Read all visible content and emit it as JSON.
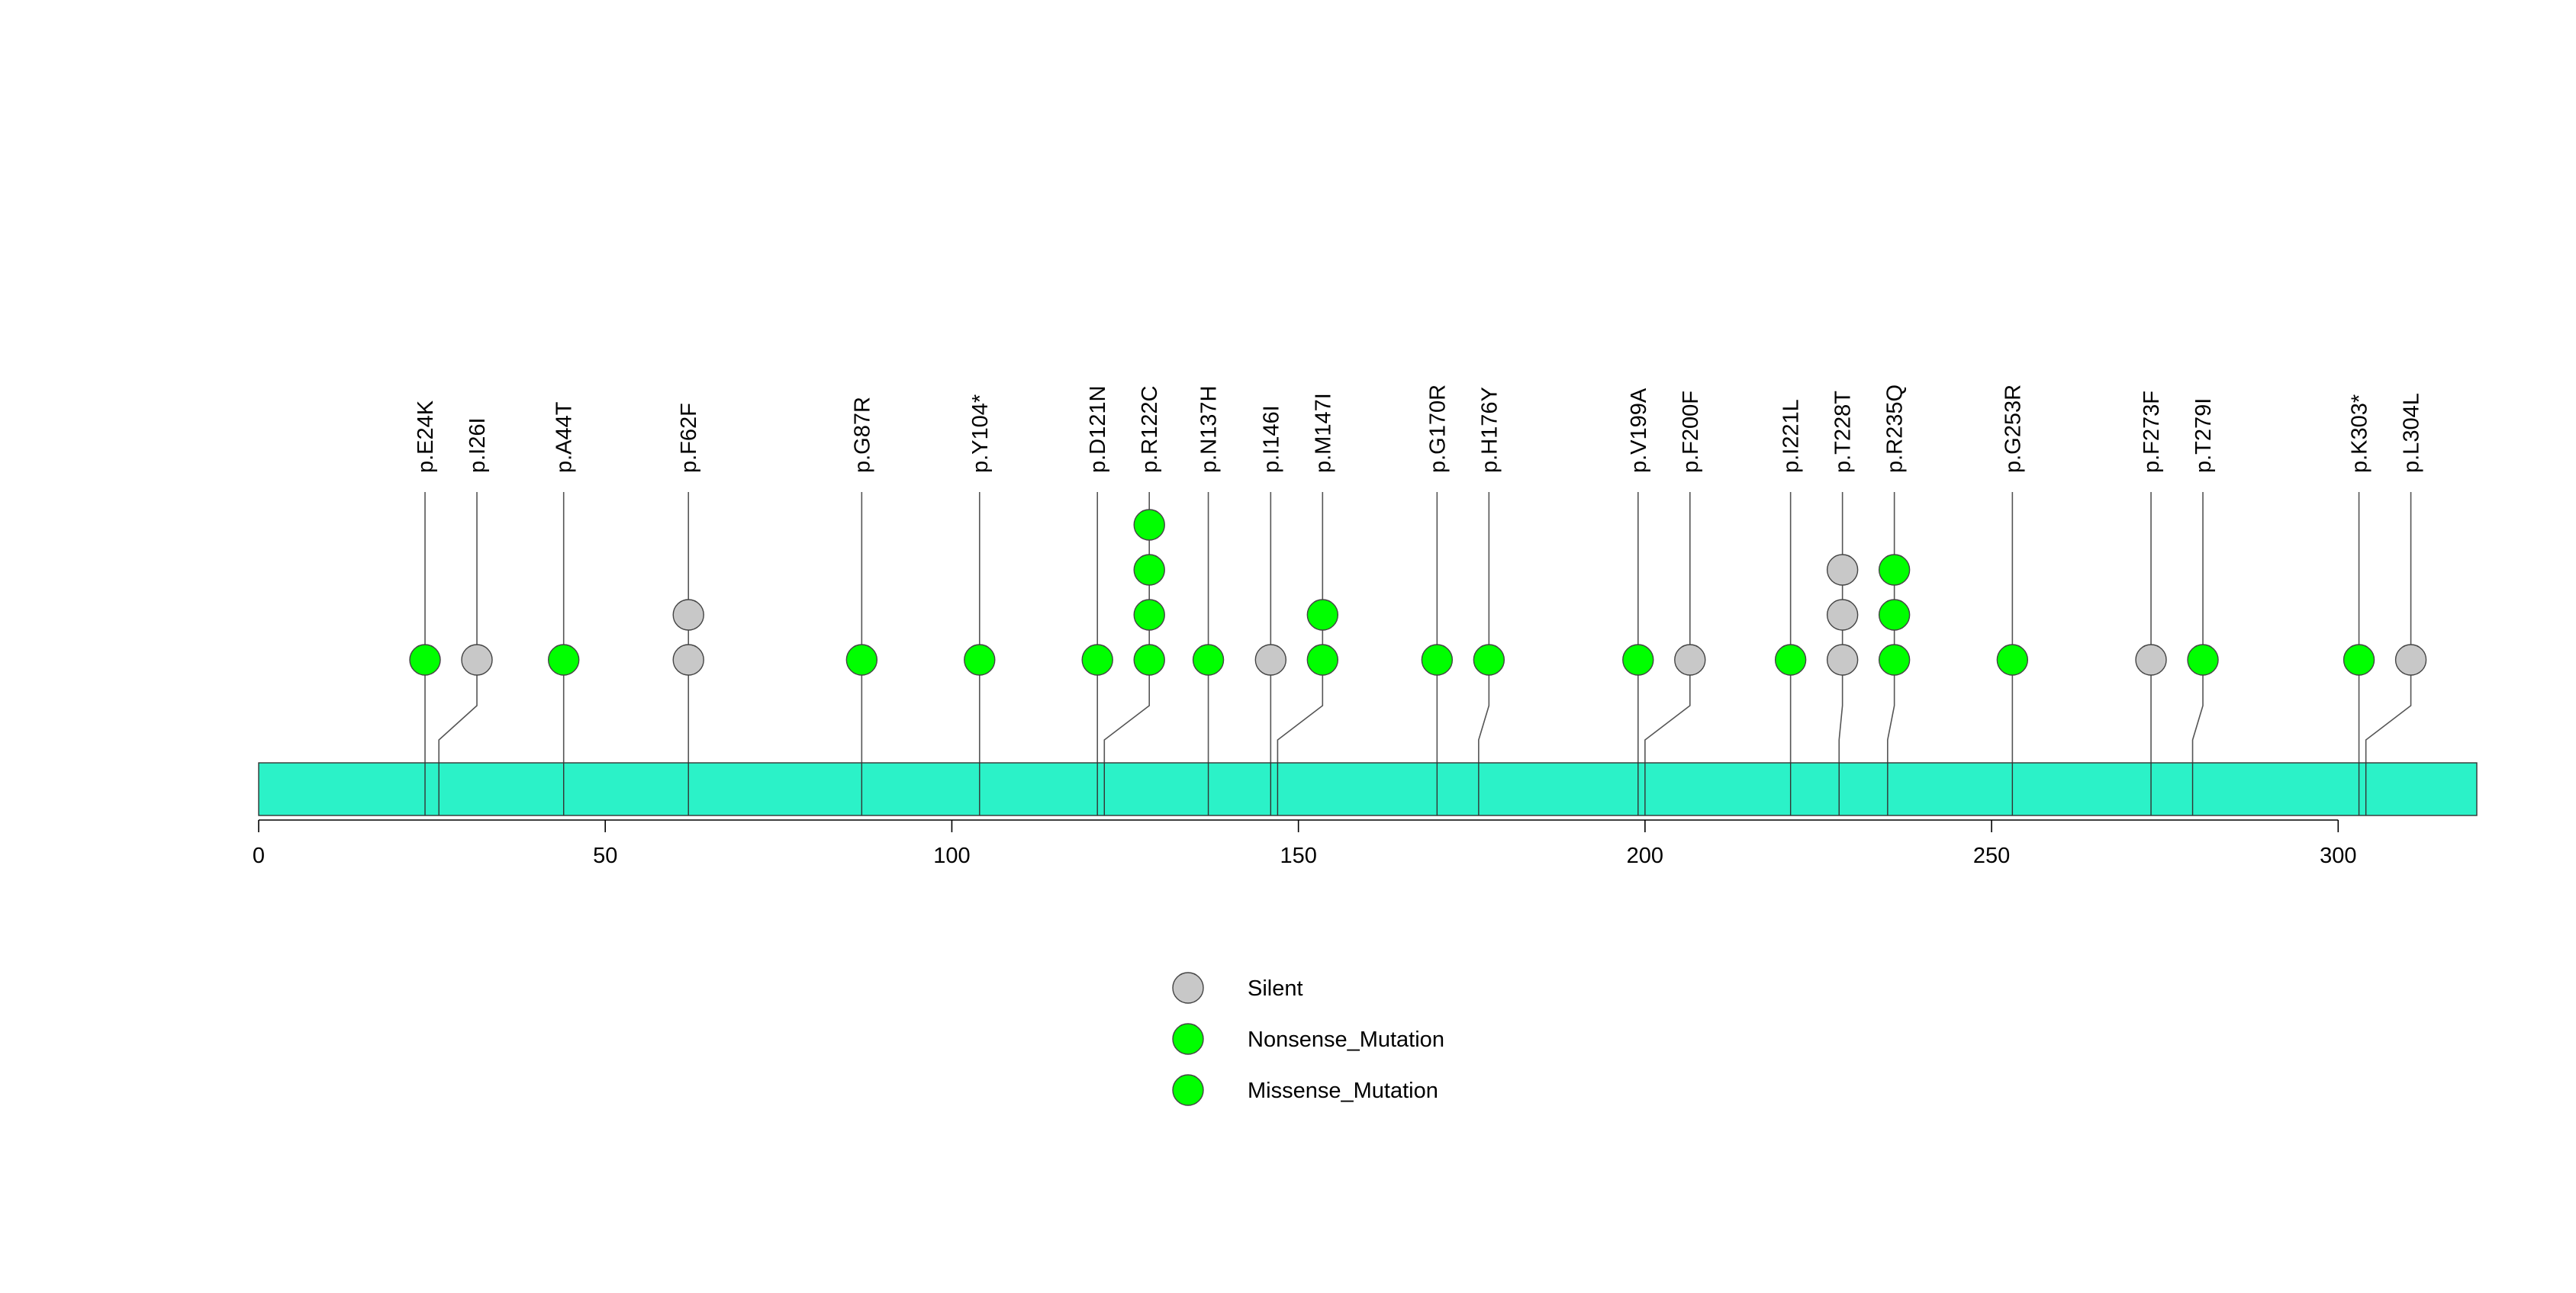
{
  "chart_data": {
    "type": "lollipop",
    "title": "",
    "xlabel": "",
    "ylabel": "",
    "protein_length": 320,
    "x_ticks": [
      0,
      50,
      100,
      150,
      200,
      250,
      300
    ],
    "domain_color": "#2bf2c8",
    "colors": {
      "Silent": "#c8c8c8",
      "Nonsense_Mutation": "#00ff00",
      "Missense_Mutation": "#00ff00"
    },
    "legend": [
      {
        "label": "Silent",
        "color": "#c8c8c8"
      },
      {
        "label": "Nonsense_Mutation",
        "color": "#00ff00"
      },
      {
        "label": "Missense_Mutation",
        "color": "#00ff00"
      }
    ],
    "mutations": [
      {
        "label": "p.E24K",
        "position": 24,
        "type": "Missense_Mutation",
        "count": 1
      },
      {
        "label": "p.I26I",
        "position": 26,
        "type": "Silent",
        "count": 1
      },
      {
        "label": "p.A44T",
        "position": 44,
        "type": "Missense_Mutation",
        "count": 1
      },
      {
        "label": "p.F62F",
        "position": 62,
        "type": "Silent",
        "count": 2
      },
      {
        "label": "p.G87R",
        "position": 87,
        "type": "Missense_Mutation",
        "count": 1
      },
      {
        "label": "p.Y104*",
        "position": 104,
        "type": "Nonsense_Mutation",
        "count": 1
      },
      {
        "label": "p.D121N",
        "position": 121,
        "type": "Missense_Mutation",
        "count": 1
      },
      {
        "label": "p.R122C",
        "position": 122,
        "type": "Missense_Mutation",
        "count": 4
      },
      {
        "label": "p.N137H",
        "position": 137,
        "type": "Missense_Mutation",
        "count": 1
      },
      {
        "label": "p.I146I",
        "position": 146,
        "type": "Silent",
        "count": 1
      },
      {
        "label": "p.M147I",
        "position": 147,
        "type": "Missense_Mutation",
        "count": 2
      },
      {
        "label": "p.G170R",
        "position": 170,
        "type": "Missense_Mutation",
        "count": 1
      },
      {
        "label": "p.H176Y",
        "position": 176,
        "type": "Missense_Mutation",
        "count": 1
      },
      {
        "label": "p.V199A",
        "position": 199,
        "type": "Missense_Mutation",
        "count": 1
      },
      {
        "label": "p.F200F",
        "position": 200,
        "type": "Silent",
        "count": 1
      },
      {
        "label": "p.I221L",
        "position": 221,
        "type": "Missense_Mutation",
        "count": 1
      },
      {
        "label": "p.T228T",
        "position": 228,
        "type": "Silent",
        "count": 3
      },
      {
        "label": "p.R235Q",
        "position": 235,
        "type": "Missense_Mutation",
        "count": 3
      },
      {
        "label": "p.G253R",
        "position": 253,
        "type": "Missense_Mutation",
        "count": 1
      },
      {
        "label": "p.F273F",
        "position": 273,
        "type": "Silent",
        "count": 1
      },
      {
        "label": "p.T279I",
        "position": 279,
        "type": "Missense_Mutation",
        "count": 1
      },
      {
        "label": "p.K303*",
        "position": 303,
        "type": "Nonsense_Mutation",
        "count": 1
      },
      {
        "label": "p.L304L",
        "position": 304,
        "type": "Silent",
        "count": 1
      }
    ]
  }
}
